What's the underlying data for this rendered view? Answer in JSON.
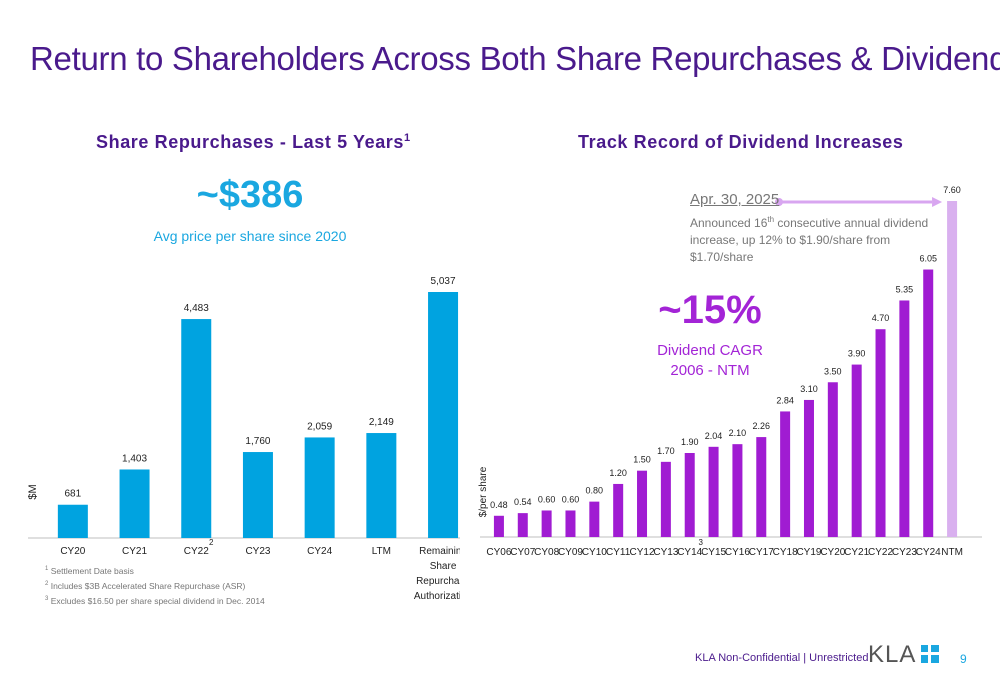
{
  "page": {
    "title": "Return to Shareholders Across Both Share Repurchases & Dividends",
    "footer": "KLA Non-Confidential | Unrestricted",
    "page_number": "9",
    "logo_text": "KLA"
  },
  "left": {
    "title": "Share Repurchases - Last 5 Years",
    "title_sup": "1",
    "avg_price": "~$386",
    "avg_label": "Avg price per share since 2020",
    "footnotes": [
      {
        "num": "1",
        "text": "Settlement Date basis"
      },
      {
        "num": "2",
        "text": "Includes $3B Accelerated Share Repurchase (ASR)"
      },
      {
        "num": "3",
        "text": "Excludes $16.50 per share special dividend in Dec. 2014"
      }
    ]
  },
  "right": {
    "title": "Track Record of Dividend Increases",
    "apr_date": "Apr. 30, 2025",
    "apr_desc_1": "Announced 16",
    "apr_desc_sup": "th",
    "apr_desc_2": " consecutive annual dividend increase, up 12% to $1.90/share from $1.70/share",
    "cagr_value": "~15%",
    "cagr_label_1": "Dividend CAGR",
    "cagr_label_2": "2006 - NTM"
  },
  "chart_data": [
    {
      "type": "bar",
      "ylabel": "$M",
      "categories": [
        "CY20",
        "CY21",
        "CY22",
        "CY23",
        "CY24",
        "LTM",
        "Remaining Share Repurchase Authorization"
      ],
      "category_lines": [
        [
          "CY20"
        ],
        [
          "CY21"
        ],
        [
          "CY22"
        ],
        [
          "CY23"
        ],
        [
          "CY24"
        ],
        [
          "LTM"
        ],
        [
          "Remaining",
          "Share",
          "Repurchase",
          "Authorization"
        ]
      ],
      "values": [
        681,
        1403,
        4483,
        1760,
        2059,
        2149,
        5037
      ],
      "labels": [
        "681",
        "1,403",
        "4,483",
        "1,760",
        "2,059",
        "2,149",
        "5,037"
      ],
      "footnote_marks": {
        "CY22": "2"
      },
      "ylim": [
        0,
        5037
      ],
      "colors": {
        "bar": "#00a3e0",
        "axis": "#bfbfbf",
        "text": "#222222"
      }
    },
    {
      "type": "bar",
      "ylabel": "$/per share",
      "categories": [
        "CY06",
        "CY07",
        "CY08",
        "CY09",
        "CY10",
        "CY11",
        "CY12",
        "CY13",
        "CY14",
        "CY15",
        "CY16",
        "CY17",
        "CY18",
        "CY19",
        "CY20",
        "CY21",
        "CY22",
        "CY23",
        "CY24",
        "NTM"
      ],
      "values": [
        0.48,
        0.54,
        0.6,
        0.6,
        0.8,
        1.2,
        1.5,
        1.7,
        1.9,
        2.04,
        2.1,
        2.26,
        2.84,
        3.1,
        3.5,
        3.9,
        4.7,
        5.35,
        6.05,
        7.6
      ],
      "labels": [
        "0.48",
        "0.54",
        "0.60",
        "0.60",
        "0.80",
        "1.20",
        "1.50",
        "1.70",
        "1.90",
        "2.04",
        "2.10",
        "2.26",
        "2.84",
        "3.10",
        "3.50",
        "3.90",
        "4.70",
        "5.35",
        "6.05",
        "7.60"
      ],
      "footnote_marks": {
        "CY14": "3"
      },
      "ylim": [
        0,
        7.6
      ],
      "colors": {
        "bar": "#a01cd2",
        "ntm_bar": "#d9b0ef",
        "arrow": "#d8a6f0",
        "axis": "#bfbfbf",
        "text": "#222222"
      }
    }
  ]
}
